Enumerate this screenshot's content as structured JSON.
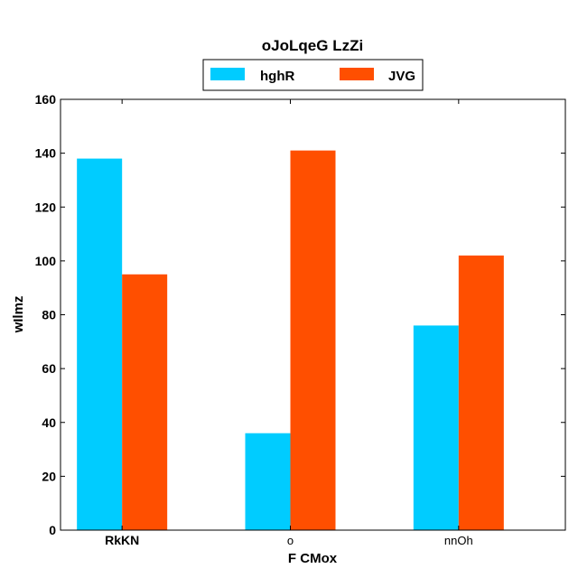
{
  "chart_data": {
    "type": "bar",
    "title": "oJoLqeG LzZi",
    "xlabel": "F CMox",
    "ylabel": "wIlmz",
    "categories": [
      "RkKN",
      "o",
      "nnOh"
    ],
    "series": [
      {
        "name": "hghR",
        "color": "#00CCFF",
        "values": [
          138,
          36,
          76
        ]
      },
      {
        "name": "JVG",
        "color": "#FF4F00",
        "values": [
          95,
          141,
          102
        ]
      }
    ],
    "ylim": [
      0,
      160
    ],
    "yticks": [
      0,
      20,
      40,
      60,
      80,
      100,
      120,
      140,
      160
    ],
    "grid": false,
    "legend_position": "top-center"
  }
}
